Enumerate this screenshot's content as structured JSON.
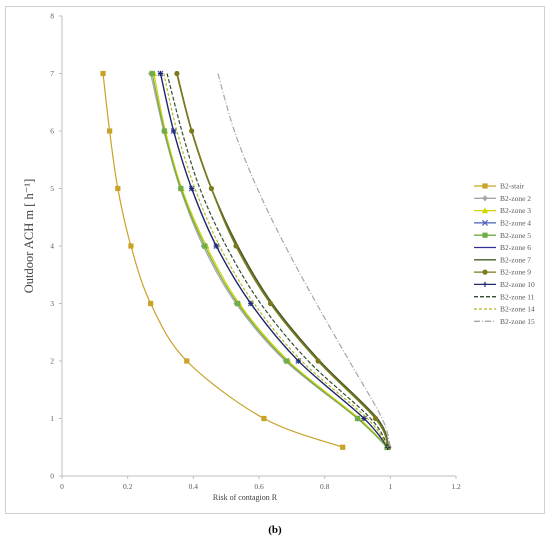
{
  "caption": "(b)",
  "chart_data": {
    "type": "line",
    "xlabel": "Risk of contagion R",
    "ylabel": "Outdoor ACH m [ h⁻¹]",
    "xlim": [
      0,
      1.2
    ],
    "ylim": [
      0,
      8
    ],
    "xticks": [
      "0",
      "0.2",
      "0.4",
      "0.6",
      "0.8",
      "1",
      "1.2"
    ],
    "yticks": [
      "0",
      "1",
      "2",
      "3",
      "4",
      "5",
      "6",
      "7",
      "8"
    ],
    "grid": false,
    "legend_position": "right",
    "series": [
      {
        "name": "B2-stair",
        "color": "#c9a227",
        "marker": "square",
        "dash": "",
        "x": [
          0.125,
          0.145,
          0.17,
          0.21,
          0.27,
          0.38,
          0.615,
          0.855
        ],
        "y": [
          7,
          6,
          5,
          4,
          3,
          2,
          1,
          0.5
        ]
      },
      {
        "name": "B2-zone 2",
        "color": "#a6a6a6",
        "marker": "diamond",
        "dash": "",
        "x": [
          0.27,
          0.31,
          0.36,
          0.43,
          0.53,
          0.68,
          0.9,
          0.99
        ],
        "y": [
          7,
          6,
          5,
          4,
          3,
          2,
          1,
          0.5
        ]
      },
      {
        "name": "B2-zone 3",
        "color": "#d4d400",
        "marker": "triangle",
        "dash": "",
        "x": [
          0.28,
          0.315,
          0.365,
          0.44,
          0.54,
          0.69,
          0.905,
          0.99
        ],
        "y": [
          7,
          6,
          5,
          4,
          3,
          2,
          1,
          0.5
        ]
      },
      {
        "name": "B2-zone 4",
        "color": "#4f5fbf",
        "marker": "x",
        "dash": "",
        "x": [
          0.3,
          0.34,
          0.395,
          0.47,
          0.575,
          0.72,
          0.92,
          0.992
        ],
        "y": [
          7,
          6,
          5,
          4,
          3,
          2,
          1,
          0.5
        ]
      },
      {
        "name": "B2-zone 5",
        "color": "#70ad47",
        "marker": "square",
        "dash": "",
        "x": [
          0.275,
          0.312,
          0.362,
          0.435,
          0.535,
          0.685,
          0.9,
          0.99
        ],
        "y": [
          7,
          6,
          5,
          4,
          3,
          2,
          1,
          0.5
        ]
      },
      {
        "name": "B2-zone 6",
        "color": "#2e3192",
        "marker": "none",
        "dash": "",
        "x": [
          0.3,
          0.34,
          0.395,
          0.47,
          0.575,
          0.72,
          0.92,
          0.992
        ],
        "y": [
          7,
          6,
          5,
          4,
          3,
          2,
          1,
          0.5
        ]
      },
      {
        "name": "B2-zone 7",
        "color": "#4a5a2a",
        "marker": "none",
        "dash": "",
        "x": [
          0.35,
          0.395,
          0.455,
          0.535,
          0.64,
          0.785,
          0.96,
          0.995
        ],
        "y": [
          7,
          6,
          5,
          4,
          3,
          2,
          1,
          0.5
        ]
      },
      {
        "name": "B2-zone 9",
        "color": "#7a7a1f",
        "marker": "circle",
        "dash": "",
        "x": [
          0.35,
          0.395,
          0.455,
          0.53,
          0.635,
          0.78,
          0.955,
          0.995
        ],
        "y": [
          7,
          6,
          5,
          4,
          3,
          2,
          1,
          0.5
        ]
      },
      {
        "name": "B2-zone 10",
        "color": "#1f2a6b",
        "marker": "plus",
        "dash": "",
        "x": [
          0.3,
          0.34,
          0.395,
          0.47,
          0.575,
          0.72,
          0.92,
          0.992
        ],
        "y": [
          7,
          6,
          5,
          4,
          3,
          2,
          1,
          0.5
        ]
      },
      {
        "name": "B2-zone 11",
        "color": "#2f4f2f",
        "marker": "none",
        "dash": "4,2",
        "x": [
          0.32,
          0.365,
          0.42,
          0.5,
          0.605,
          0.75,
          0.94,
          0.993
        ],
        "y": [
          7,
          6,
          5,
          4,
          3,
          2,
          1,
          0.5
        ]
      },
      {
        "name": "B2-zone 14",
        "color": "#b5b52a",
        "marker": "none",
        "dash": "3,2",
        "x": [
          0.31,
          0.35,
          0.405,
          0.48,
          0.585,
          0.73,
          0.93,
          0.993
        ],
        "y": [
          7,
          6,
          5,
          4,
          3,
          2,
          1,
          0.5
        ]
      },
      {
        "name": "B2-zone 15",
        "color": "#a6a6a6",
        "marker": "none",
        "dash": "6,2,1,2",
        "x": [
          0.475,
          0.525,
          0.595,
          0.68,
          0.775,
          0.875,
          0.975,
          1.0
        ],
        "y": [
          7,
          6,
          5,
          4,
          3,
          2,
          1,
          0.5
        ]
      }
    ]
  }
}
